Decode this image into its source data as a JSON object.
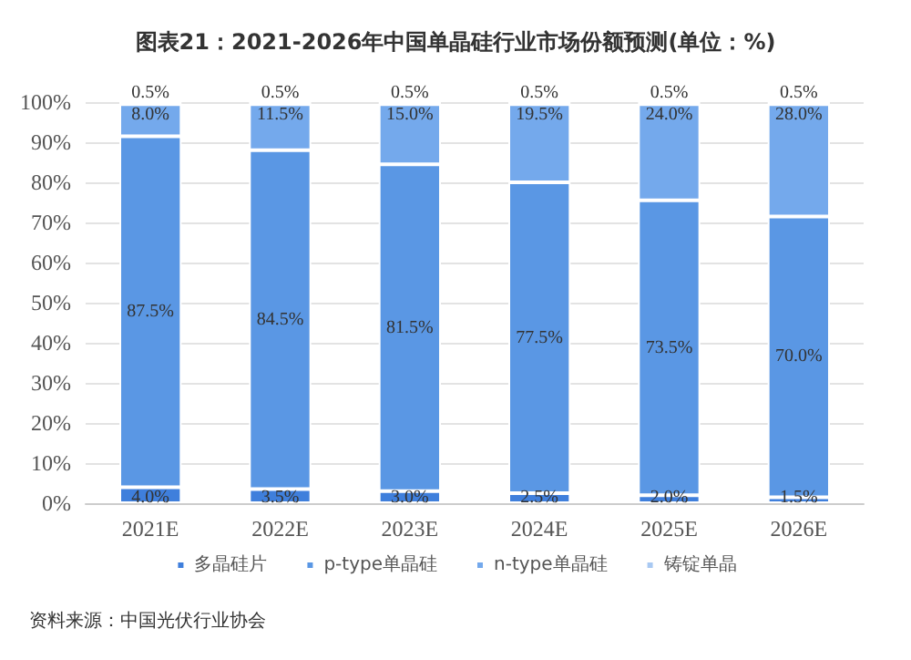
{
  "chart_data": {
    "type": "bar",
    "title": "图表21：2021-2026年中国单晶硅行业市场份额预测(单位：%)",
    "categories": [
      "2021E",
      "2022E",
      "2023E",
      "2024E",
      "2025E",
      "2026E"
    ],
    "stacked": true,
    "series": [
      {
        "name": "多晶硅片",
        "color": "#3f7fdc",
        "values": [
          4,
          3.5,
          3,
          2.5,
          2,
          1.5
        ],
        "value_labels": [
          "4.0%",
          "3.5%",
          "3.0%",
          "2.5%",
          "2.0%",
          "1.5%"
        ]
      },
      {
        "name": "p-type单晶硅",
        "color": "#5a97e4",
        "values": [
          87.5,
          84.5,
          81.5,
          77.5,
          73.5,
          70
        ],
        "value_labels": [
          "87.5%",
          "84.5%",
          "81.5%",
          "77.5%",
          "73.5%",
          "70.0%"
        ]
      },
      {
        "name": "n-type单晶硅",
        "color": "#74a9ec",
        "values": [
          8,
          11.5,
          15,
          19.5,
          24,
          28
        ],
        "value_labels": [
          "8.0%",
          "11.5%",
          "15.0%",
          "19.5%",
          "24.0%",
          "28.0%"
        ]
      },
      {
        "name": "铸锭单晶",
        "color": "#a9c9f2",
        "values": [
          0.5,
          0.5,
          0.5,
          0.5,
          0.5,
          0.5
        ],
        "value_labels": [
          "0.5%",
          "0.5%",
          "0.5%",
          "0.5%",
          "0.5%",
          "0.5%"
        ]
      }
    ],
    "ylim": [
      0,
      100
    ],
    "yticks": [
      {
        "value": 0,
        "label": "0%"
      },
      {
        "value": 10,
        "label": "10%"
      },
      {
        "value": 20,
        "label": "20%"
      },
      {
        "value": 30,
        "label": "30%"
      },
      {
        "value": 40,
        "label": "40%"
      },
      {
        "value": 50,
        "label": "50%"
      },
      {
        "value": 60,
        "label": "60%"
      },
      {
        "value": 70,
        "label": "70%"
      },
      {
        "value": 80,
        "label": "80%"
      },
      {
        "value": 90,
        "label": "90%"
      },
      {
        "value": 100,
        "label": "100%"
      }
    ],
    "grid": "y",
    "legend": "bottom",
    "annotations": [
      "资料来源：中国光伏行业协会"
    ]
  }
}
